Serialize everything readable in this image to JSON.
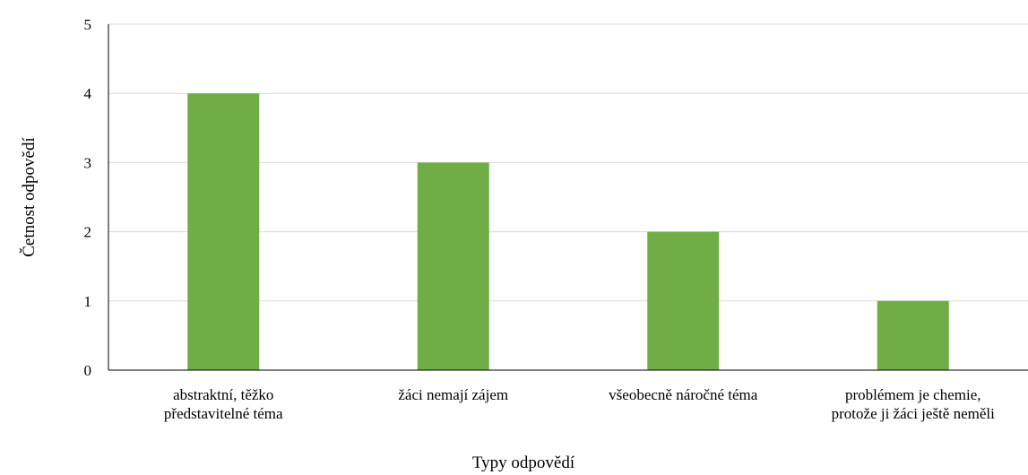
{
  "chart_data": {
    "type": "bar",
    "categories": [
      [
        "abstraktní, těžko",
        "představitelné téma"
      ],
      [
        "žáci nemají zájem"
      ],
      [
        "všeobecně náročné téma"
      ],
      [
        "problémem je chemie,",
        "protože ji žáci ještě neměli"
      ]
    ],
    "values": [
      4,
      3,
      2,
      1
    ],
    "title": "",
    "xlabel": "Typy odpovědí",
    "ylabel": "Četnost odpovědí",
    "ylim": [
      0,
      5
    ],
    "yticks": [
      "0",
      "1",
      "2",
      "3",
      "4",
      "5"
    ],
    "grid": true,
    "legend": "none",
    "bar_color": "#70ad47",
    "grid_color": "#d9d9d9",
    "axis_color": "#000000"
  }
}
